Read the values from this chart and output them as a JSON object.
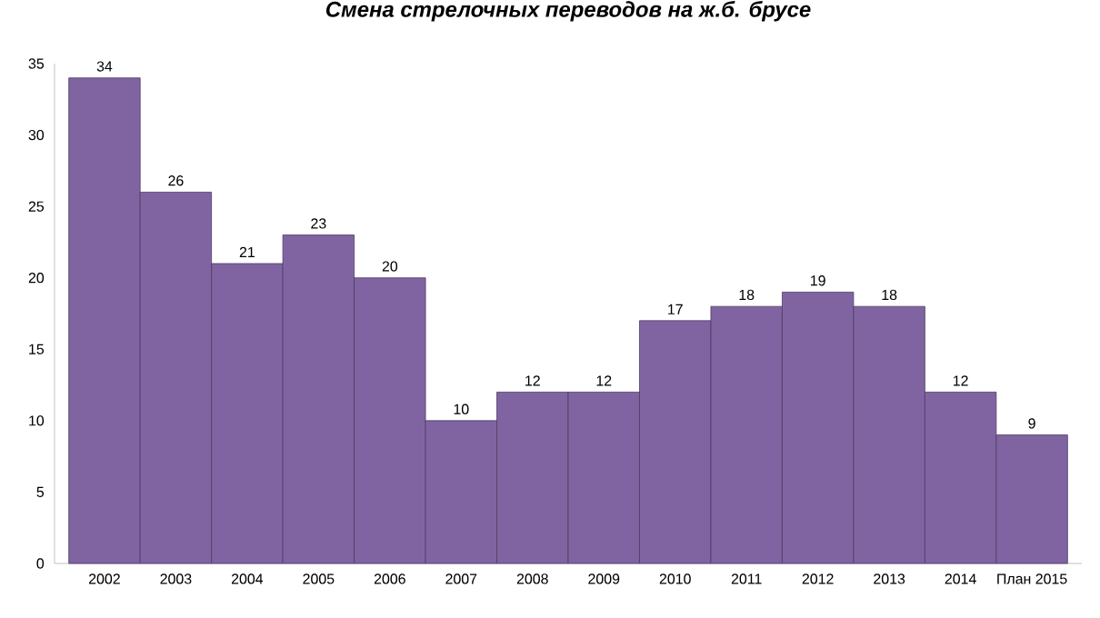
{
  "chart_data": {
    "type": "bar",
    "title": "*Смена стрелочных переводов на ж.б. брусе*",
    "categories": [
      "2002",
      "2003",
      "2004",
      "2005",
      "2006",
      "2007",
      "2008",
      "2009",
      "2010",
      "2011",
      "2012",
      "2013",
      "2014",
      "План 2015"
    ],
    "values": [
      34,
      26,
      21,
      23,
      20,
      10,
      12,
      12,
      17,
      18,
      19,
      18,
      12,
      9
    ],
    "color": "#8064a2",
    "ylim": [
      0,
      35
    ],
    "yticks": [
      0,
      5,
      10,
      15,
      20,
      25,
      30,
      35
    ],
    "data_labels": true
  }
}
